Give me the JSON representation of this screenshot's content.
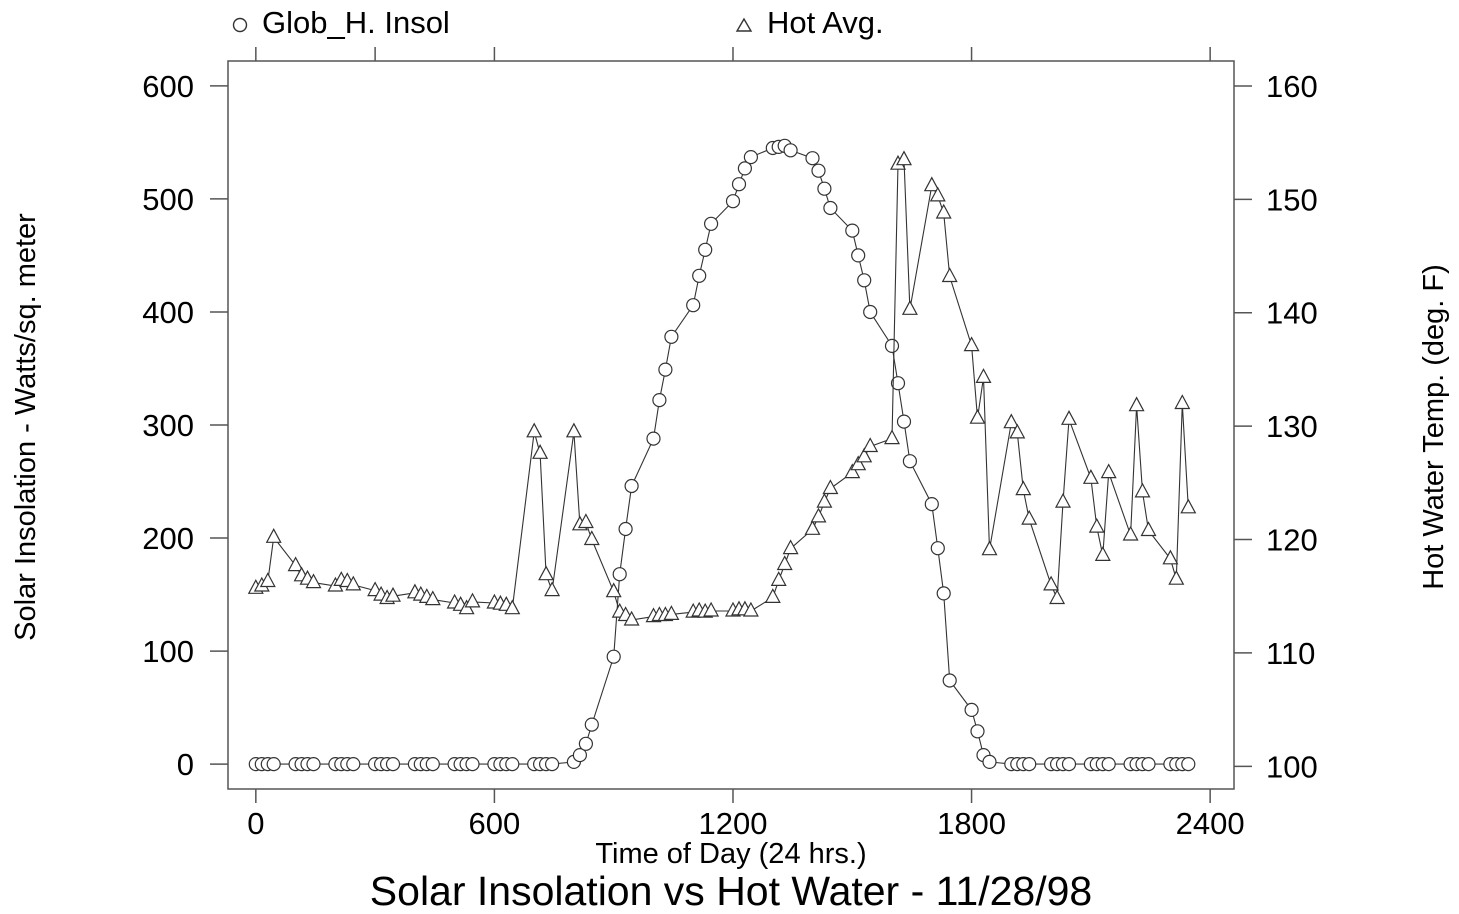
{
  "chart_data": {
    "type": "line",
    "title": "Solar Insolation vs Hot Water - 11/28/98",
    "xlabel": "Time of Day (24 hrs.)",
    "ylabel": "Solar Insolation - Watts/sq. meter",
    "y2label": "Hot Water Temp. (deg. F)",
    "xlim": [
      -70,
      2460
    ],
    "ylim": [
      -22,
      622
    ],
    "y2lim": [
      98.0,
      162.2
    ],
    "x_ticks": [
      0,
      600,
      1200,
      1800,
      2400
    ],
    "x_tick_labels": [
      "0",
      "600",
      "1200",
      "1800",
      "2400"
    ],
    "x_top_ticks": [
      0,
      300,
      600,
      1200,
      1800,
      2400
    ],
    "y_ticks": [
      0,
      100,
      200,
      300,
      400,
      500,
      600
    ],
    "y_tick_labels": [
      "0",
      "100",
      "200",
      "300",
      "400",
      "500",
      "600"
    ],
    "y2_ticks": [
      100,
      110,
      120,
      130,
      140,
      150,
      160
    ],
    "y2_tick_labels": [
      "100",
      "110",
      "120",
      "130",
      "140",
      "150",
      "160"
    ],
    "grid": false,
    "legend_position": "top",
    "line_color": "#333333",
    "series": [
      {
        "name": "Glob_H. Insol",
        "marker": "circle",
        "axis": "left",
        "x": [
          0,
          15,
          30,
          45,
          100,
          115,
          130,
          145,
          200,
          215,
          230,
          245,
          300,
          315,
          330,
          345,
          400,
          415,
          430,
          445,
          500,
          515,
          530,
          545,
          600,
          615,
          630,
          645,
          700,
          715,
          730,
          745,
          800,
          815,
          830,
          845,
          900,
          915,
          930,
          945,
          1000,
          1015,
          1030,
          1045,
          1100,
          1115,
          1130,
          1145,
          1200,
          1215,
          1230,
          1245,
          1300,
          1315,
          1330,
          1345,
          1400,
          1415,
          1430,
          1445,
          1500,
          1515,
          1530,
          1545,
          1600,
          1615,
          1630,
          1645,
          1700,
          1715,
          1730,
          1745,
          1800,
          1815,
          1830,
          1845,
          1900,
          1915,
          1930,
          1945,
          2000,
          2015,
          2030,
          2045,
          2100,
          2115,
          2130,
          2145,
          2200,
          2215,
          2230,
          2245,
          2300,
          2315,
          2330,
          2345
        ],
        "y": [
          0,
          0,
          0,
          0,
          0,
          0,
          0,
          0,
          0,
          0,
          0,
          0,
          0,
          0,
          0,
          0,
          0,
          0,
          0,
          0,
          0,
          0,
          0,
          0,
          0,
          0,
          0,
          0,
          0,
          0,
          0,
          0,
          2,
          8,
          18,
          35,
          95,
          168,
          208,
          246,
          288,
          322,
          349,
          378,
          406,
          432,
          455,
          478,
          498,
          513,
          527,
          537,
          545,
          546,
          547,
          543,
          536,
          525,
          509,
          492,
          472,
          450,
          428,
          400,
          370,
          337,
          303,
          268,
          230,
          191,
          151,
          74,
          48,
          29,
          8,
          2,
          0,
          0,
          0,
          0,
          0,
          0,
          0,
          0,
          0,
          0,
          0,
          0,
          0,
          0,
          0,
          0,
          0,
          0,
          0,
          0
        ]
      },
      {
        "name": "Hot Avg.",
        "marker": "triangle",
        "axis": "right",
        "x": [
          0,
          15,
          30,
          45,
          100,
          115,
          130,
          145,
          200,
          215,
          230,
          245,
          300,
          315,
          330,
          345,
          400,
          415,
          430,
          445,
          500,
          515,
          530,
          545,
          600,
          615,
          630,
          645,
          700,
          715,
          730,
          745,
          800,
          815,
          830,
          845,
          900,
          915,
          930,
          945,
          1000,
          1015,
          1030,
          1045,
          1100,
          1115,
          1130,
          1145,
          1200,
          1215,
          1230,
          1245,
          1300,
          1315,
          1330,
          1345,
          1400,
          1415,
          1430,
          1445,
          1500,
          1515,
          1530,
          1545,
          1600,
          1615,
          1630,
          1645,
          1700,
          1715,
          1730,
          1745,
          1800,
          1815,
          1830,
          1845,
          1900,
          1915,
          1930,
          1945,
          2000,
          2015,
          2030,
          2045,
          2100,
          2115,
          2130,
          2145,
          2200,
          2215,
          2230,
          2245,
          2300,
          2315,
          2330,
          2345
        ],
        "y": [
          115.7,
          115.9,
          116.3,
          120.2,
          117.7,
          116.8,
          116.5,
          116.2,
          115.9,
          116.4,
          116.3,
          116.0,
          115.5,
          115.1,
          114.8,
          115.0,
          115.3,
          115.1,
          114.9,
          114.7,
          114.4,
          114.2,
          113.9,
          114.5,
          114.4,
          114.3,
          114.2,
          113.9,
          129.5,
          127.6,
          116.9,
          115.5,
          129.5,
          121.3,
          121.5,
          120.0,
          115.4,
          113.6,
          113.3,
          112.9,
          113.2,
          113.3,
          113.3,
          113.4,
          113.6,
          113.7,
          113.6,
          113.7,
          113.7,
          113.8,
          113.8,
          113.7,
          114.9,
          116.4,
          117.8,
          119.2,
          120.9,
          122.0,
          123.3,
          124.5,
          125.9,
          126.6,
          127.3,
          128.2,
          128.9,
          153.1,
          153.5,
          140.3,
          151.2,
          150.3,
          148.8,
          143.2,
          137.1,
          130.7,
          134.3,
          119.1,
          130.3,
          129.4,
          124.4,
          121.8,
          116.0,
          114.8,
          123.3,
          130.6,
          125.4,
          121.1,
          118.6,
          125.9,
          120.4,
          131.8,
          124.2,
          120.8,
          118.3,
          116.5,
          132.0,
          122.8
        ]
      }
    ]
  }
}
